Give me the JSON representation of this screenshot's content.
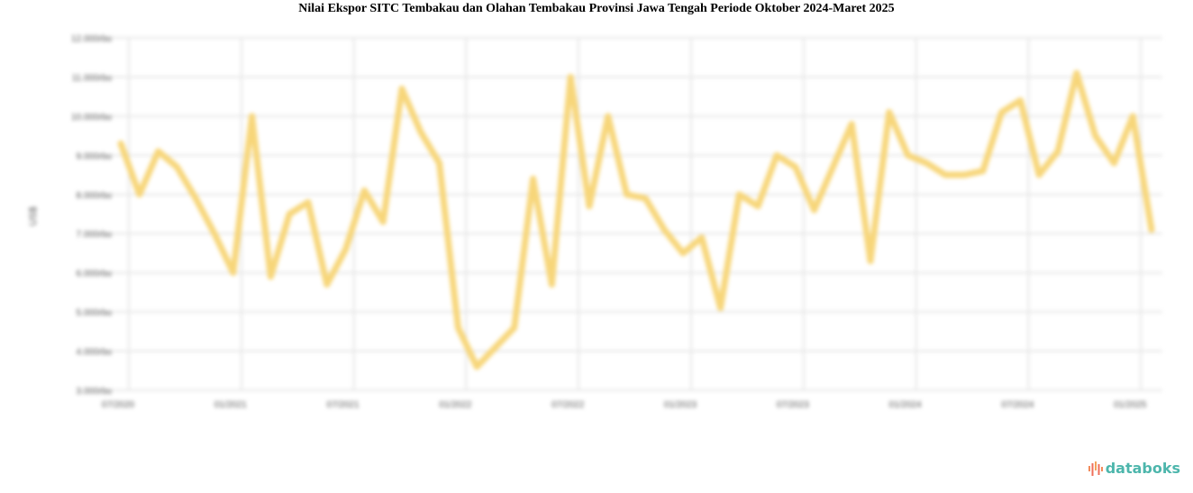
{
  "chart_data": {
    "type": "line",
    "title": "Nilai Ekspor SITC Tembakau dan Olahan Tembakau Provinsi Jawa Tengah Periode Oktober 2024-Maret 2025",
    "ylabel": "US$",
    "xlabel": "",
    "ylim": [
      3000,
      12000
    ],
    "yticks": [
      "3.000rbu",
      "4.000rbu",
      "5.000rbu",
      "6.000rbu",
      "7.000rbu",
      "8.000rbu",
      "9.000rbu",
      "10.000rbu",
      "11.000rbu",
      "12.000rbu"
    ],
    "xticks": [
      "07/2020",
      "01/2021",
      "07/2021",
      "01/2022",
      "07/2022",
      "01/2023",
      "07/2023",
      "01/2024",
      "07/2024",
      "01/2025"
    ],
    "grid": true,
    "line_color": "#f7d67a",
    "values": [
      9300,
      8000,
      9100,
      8700,
      7900,
      7000,
      6000,
      10000,
      5900,
      7500,
      7800,
      5700,
      6600,
      8100,
      7300,
      10700,
      9600,
      8800,
      4600,
      3600,
      4100,
      4600,
      8400,
      5700,
      11000,
      7700,
      10000,
      8000,
      7900,
      7100,
      6500,
      6900,
      5100,
      8000,
      7700,
      9000,
      8700,
      7600,
      8700,
      9800,
      6300,
      10100,
      9000,
      8800,
      8500,
      8500,
      8600,
      10100,
      10400,
      8500,
      9100,
      11100,
      9500,
      8800,
      10000,
      7100
    ]
  },
  "brand": {
    "logo_text": "databoks",
    "logo_color": "#4db6ac"
  }
}
